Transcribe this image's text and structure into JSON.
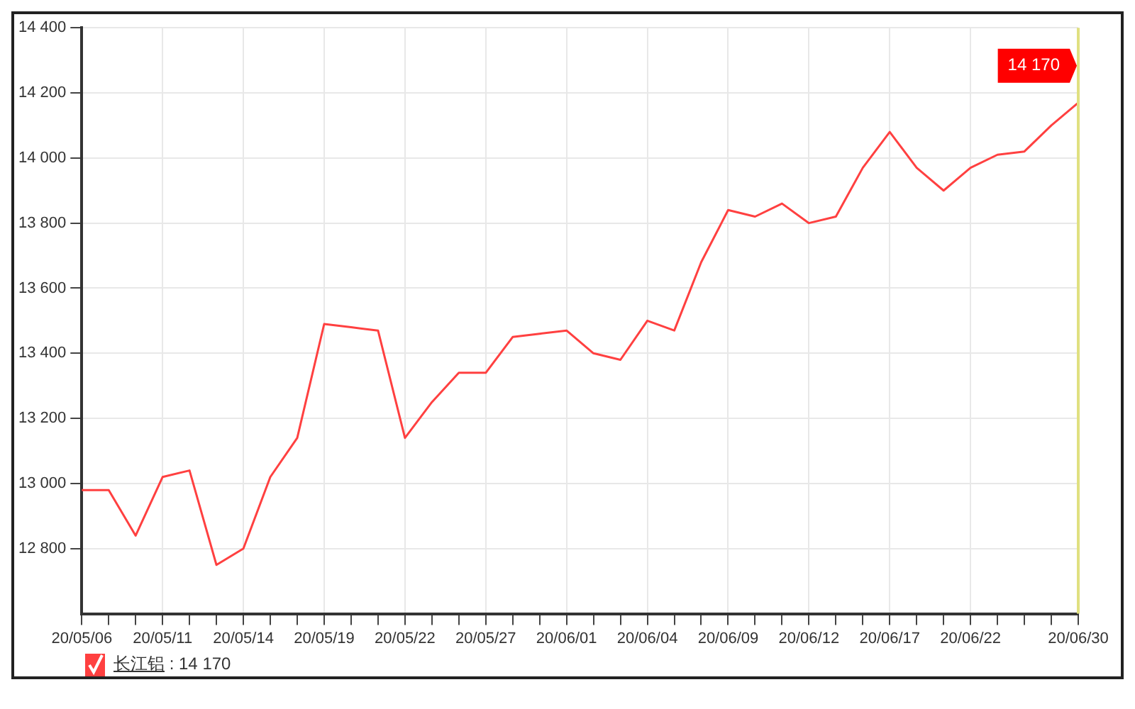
{
  "chart_data": {
    "type": "line",
    "categories": [
      "20/05/06",
      null,
      null,
      "20/05/11",
      null,
      null,
      "20/05/14",
      null,
      null,
      "20/05/19",
      null,
      null,
      "20/05/22",
      null,
      null,
      "20/05/27",
      null,
      null,
      "20/06/01",
      null,
      null,
      "20/06/04",
      null,
      null,
      "20/06/09",
      null,
      null,
      "20/06/12",
      null,
      null,
      "20/06/17",
      null,
      null,
      "20/06/22",
      null,
      null,
      null,
      "20/06/30"
    ],
    "series": [
      {
        "name": "长江铝",
        "color": "#ff4040",
        "values": [
          12980,
          12980,
          12840,
          13020,
          13040,
          12750,
          12800,
          13020,
          13140,
          13490,
          13480,
          13470,
          13140,
          13250,
          13340,
          13340,
          13450,
          13460,
          13470,
          13400,
          13380,
          13500,
          13470,
          13680,
          13840,
          13820,
          13860,
          13800,
          13820,
          13970,
          14080,
          13970,
          13900,
          13970,
          14010,
          14020,
          14100,
          14170
        ]
      }
    ],
    "ylim": [
      12600,
      14400
    ],
    "yticks": [
      {
        "value": 12800,
        "label": "12 800"
      },
      {
        "value": 13000,
        "label": "13 000"
      },
      {
        "value": 13200,
        "label": "13 200"
      },
      {
        "value": 13400,
        "label": "13 400"
      },
      {
        "value": 13600,
        "label": "13 600"
      },
      {
        "value": 13800,
        "label": "13 800"
      },
      {
        "value": 14000,
        "label": "14 000"
      },
      {
        "value": 14200,
        "label": "14 200"
      },
      {
        "value": 14400,
        "label": "14 400"
      }
    ],
    "annotations": [
      {
        "text": "14 170",
        "x": "20/06/30",
        "y": 14170
      },
      ": 14 170"
    ],
    "ref_lines": [
      {
        "axis": "x",
        "value": "20/06/30",
        "color": "#e0e080"
      }
    ],
    "grid": true,
    "legend": "bottom left",
    "marker": "none",
    "line_style": "solid"
  }
}
